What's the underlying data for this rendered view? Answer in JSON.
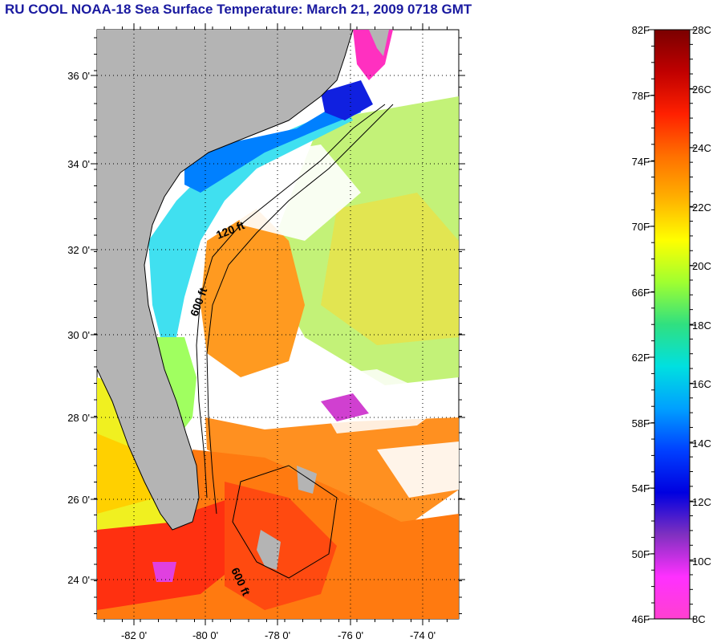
{
  "title": "RU COOL  NOAA-18  Sea Surface Temperature:  March 21, 2009 0718 GMT",
  "map": {
    "lat_ticks": [
      "24 0'",
      "26 0'",
      "28 0'",
      "30 0'",
      "32 0'",
      "34 0'",
      "36 0'"
    ],
    "lon_ticks": [
      "-82 0'",
      "-80 0'",
      "-78 0'",
      "-76 0'",
      "-74 0'"
    ],
    "contour_labels": [
      "120 ft",
      "600 ft",
      "600 ft"
    ],
    "colors": {
      "land": "#b4b4b4",
      "no_data": "#ffffff",
      "coastline": "#000000",
      "gridlines": "#000000"
    }
  },
  "colorbar": {
    "fahrenheit": [
      "82F",
      "78F",
      "74F",
      "70F",
      "66F",
      "62F",
      "58F",
      "54F",
      "50F",
      "46F"
    ],
    "celsius": [
      "28C",
      "26C",
      "24C",
      "22C",
      "20C",
      "18C",
      "16C",
      "14C",
      "12C",
      "10C",
      "8C"
    ],
    "stops": [
      "#7a0000",
      "#c00000",
      "#ff2000",
      "#ff7000",
      "#ffb000",
      "#ffff00",
      "#a0ff30",
      "#30e080",
      "#00e0e0",
      "#00a0ff",
      "#0040ff",
      "#0000e0",
      "#8030c0",
      "#ff30ff",
      "#ff40d0"
    ]
  }
}
